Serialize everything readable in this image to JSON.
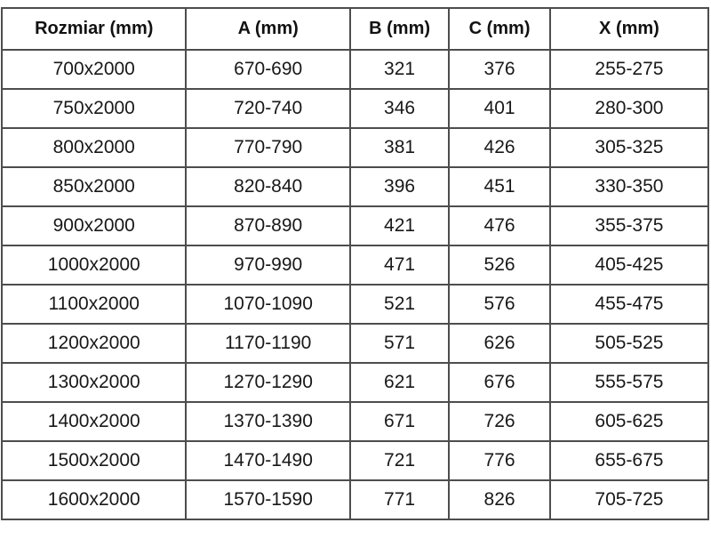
{
  "table": {
    "columns": [
      "Rozmiar (mm)",
      "A (mm)",
      "B (mm)",
      "C (mm)",
      "X (mm)"
    ],
    "rows": [
      [
        "700x2000",
        "670-690",
        "321",
        "376",
        "255-275"
      ],
      [
        "750x2000",
        "720-740",
        "346",
        "401",
        "280-300"
      ],
      [
        "800x2000",
        "770-790",
        "381",
        "426",
        "305-325"
      ],
      [
        "850x2000",
        "820-840",
        "396",
        "451",
        "330-350"
      ],
      [
        "900x2000",
        "870-890",
        "421",
        "476",
        "355-375"
      ],
      [
        "1000x2000",
        "970-990",
        "471",
        "526",
        "405-425"
      ],
      [
        "1100x2000",
        "1070-1090",
        "521",
        "576",
        "455-475"
      ],
      [
        "1200x2000",
        "1170-1190",
        "571",
        "626",
        "505-525"
      ],
      [
        "1300x2000",
        "1270-1290",
        "621",
        "676",
        "555-575"
      ],
      [
        "1400x2000",
        "1370-1390",
        "671",
        "726",
        "605-625"
      ],
      [
        "1500x2000",
        "1470-1490",
        "721",
        "776",
        "655-675"
      ],
      [
        "1600x2000",
        "1570-1590",
        "771",
        "826",
        "705-725"
      ]
    ],
    "colors": {
      "border": "#4d4d4d",
      "text": "#181818",
      "background": "#ffffff"
    }
  }
}
